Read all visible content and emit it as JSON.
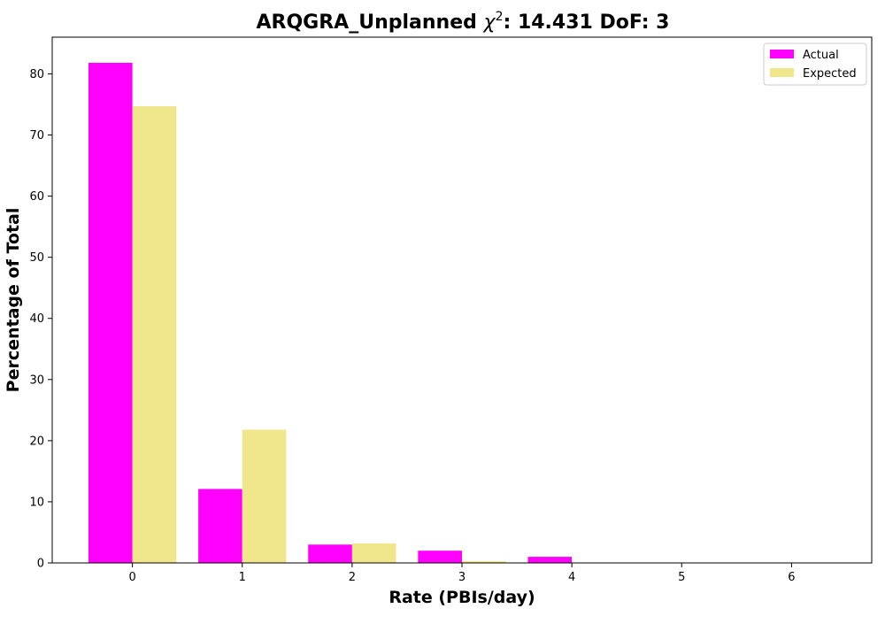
{
  "chart_data": {
    "type": "bar",
    "title_prefix": "ARQGRA_Unplanned ",
    "title_chi": "χ",
    "title_sup": "2",
    "title_suffix": ": 14.431 DoF: 3",
    "xlabel": "Rate (PBIs/day)",
    "ylabel": "Percentage of Total",
    "categories": [
      "0",
      "1",
      "2",
      "3",
      "4",
      "5",
      "6"
    ],
    "x": [
      0,
      1,
      2,
      3,
      4,
      5,
      6
    ],
    "xlim": [
      -0.73,
      6.73
    ],
    "ylim": [
      0,
      86
    ],
    "yticks": [
      0,
      10,
      20,
      30,
      40,
      50,
      60,
      70,
      80
    ],
    "grid": false,
    "legend_position": "top-right",
    "series": [
      {
        "name": "Actual",
        "color": "#ff00ff",
        "values": [
          81.8,
          12.1,
          3.0,
          2.0,
          1.0,
          0.0,
          0.0
        ]
      },
      {
        "name": "Expected",
        "color": "#f0e68c",
        "values": [
          74.7,
          21.8,
          3.2,
          0.3,
          0.0,
          0.0,
          0.0
        ]
      }
    ]
  }
}
